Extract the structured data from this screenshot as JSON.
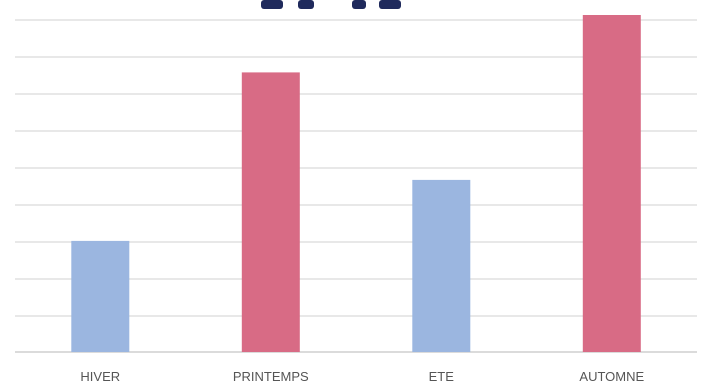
{
  "chart_data": {
    "type": "bar",
    "title": "",
    "xlabel": "",
    "ylabel": "",
    "categories": [
      "HIVER",
      "PRINTEMPS",
      "ETE",
      "AUTOMNE"
    ],
    "values": [
      3.1,
      7.8,
      4.8,
      9.4
    ],
    "ylim": [
      0,
      9.4
    ],
    "grid": true,
    "colors": [
      "#9bb6e0",
      "#d86b85",
      "#9bb6e0",
      "#d86b85"
    ],
    "title_color": "#1f2a5c"
  }
}
